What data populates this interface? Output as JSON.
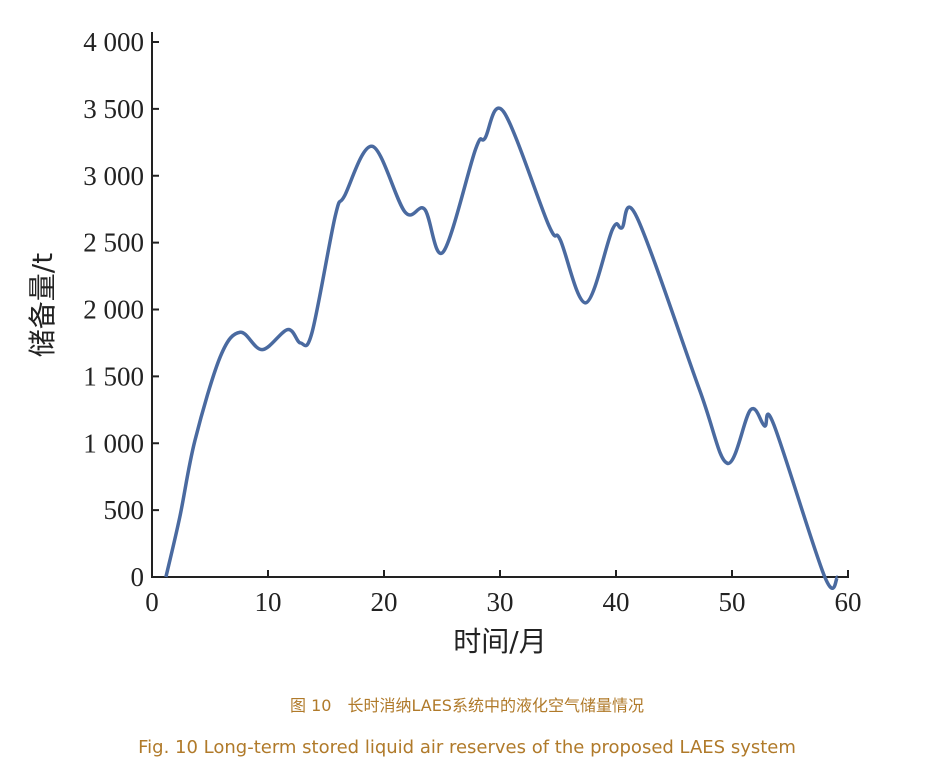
{
  "chart_data": {
    "type": "line",
    "xlabel": "时间/月",
    "ylabel": "储备量/t",
    "xlim": [
      0,
      60
    ],
    "ylim": [
      0,
      4000
    ],
    "x_ticks": [
      0,
      10,
      20,
      30,
      40,
      50,
      60
    ],
    "x_tick_labels": [
      "0",
      "10",
      "20",
      "30",
      "40",
      "50",
      "60"
    ],
    "y_ticks": [
      0,
      500,
      1000,
      1500,
      2000,
      2500,
      3000,
      3500,
      4000
    ],
    "y_tick_labels": [
      "0",
      "500",
      "1 000",
      "1 500",
      "2 000",
      "2 500",
      "3 000",
      "3 500",
      "4 000"
    ],
    "grid": false,
    "series": [
      {
        "color": "#4a6aa0",
        "x": [
          1.2,
          2.4,
          3.7,
          5.9,
          7.6,
          9.5,
          11.7,
          12.8,
          13.8,
          15.8,
          16.6,
          19.0,
          21.8,
          23.5,
          25.1,
          27.9,
          28.7,
          30.3,
          34.2,
          35.2,
          37.4,
          39.7,
          40.5,
          41.8,
          47.2,
          49.6,
          51.6,
          52.8,
          53.6,
          58.0,
          59.1
        ],
        "y": [
          0,
          450,
          1020,
          1650,
          1830,
          1700,
          1850,
          1750,
          1830,
          2700,
          2850,
          3220,
          2730,
          2750,
          2430,
          3200,
          3280,
          3480,
          2630,
          2520,
          2050,
          2600,
          2610,
          2690,
          1400,
          850,
          1250,
          1130,
          1140,
          0,
          0
        ]
      }
    ]
  },
  "caption": {
    "cn": "图 10　长时消纳LAES系统中的液化空气储量情况",
    "en": "Fig. 10   Long-term stored liquid air reserves of the proposed LAES system"
  }
}
